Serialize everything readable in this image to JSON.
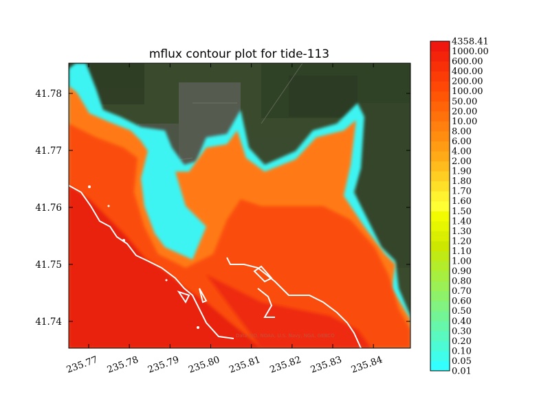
{
  "chart_data": {
    "type": "heatmap",
    "title": "mflux contour plot for tide-113",
    "xlabel": "",
    "ylabel": "",
    "xlim": [
      235.7651,
      235.8491
    ],
    "ylim": [
      41.7353,
      41.7853
    ],
    "x_ticks": [
      "235.77",
      "235.78",
      "235.79",
      "235.80",
      "235.81",
      "235.82",
      "235.83",
      "235.84"
    ],
    "x_tick_values": [
      235.77,
      235.78,
      235.79,
      235.8,
      235.81,
      235.82,
      235.83,
      235.84
    ],
    "y_ticks": [
      "41.74",
      "41.75",
      "41.76",
      "41.77",
      "41.78"
    ],
    "y_tick_values": [
      41.74,
      41.75,
      41.76,
      41.77,
      41.78
    ],
    "colorbar": {
      "levels": [
        "0.01",
        "0.05",
        "0.10",
        "0.20",
        "0.30",
        "0.40",
        "0.50",
        "0.60",
        "0.70",
        "0.80",
        "0.90",
        "1.00",
        "1.10",
        "1.20",
        "1.30",
        "1.40",
        "1.50",
        "1.60",
        "1.70",
        "1.80",
        "1.90",
        "2.00",
        "4.00",
        "6.00",
        "8.00",
        "10.00",
        "20.00",
        "50.00",
        "100.00",
        "200.00",
        "400.00",
        "600.00",
        "1000.00",
        "4358.41"
      ],
      "colors": [
        "#33ffff",
        "#40fdea",
        "#4cfbd4",
        "#59f9bf",
        "#66f7aa",
        "#73f595",
        "#80f380",
        "#8df26a",
        "#9af055",
        "#a6ee40",
        "#b3ec2b",
        "#c0ea15",
        "#cce800",
        "#d9ee00",
        "#e6f500",
        "#f2fb00",
        "#ffff33",
        "#fff22e",
        "#ffe028",
        "#ffce22",
        "#ffbc1c",
        "#ffaa16",
        "#ff9c13",
        "#ff8e10",
        "#ff800e",
        "#ff720b",
        "#ff6409",
        "#ff5606",
        "#ff4805",
        "#fc3c06",
        "#f83008",
        "#f4240b",
        "#f0180e"
      ]
    },
    "credit": "Data SIO, NOAA, U.S. Navy, NGA, GEBCO",
    "background": "satellite imagery",
    "grid": false,
    "legend": "colorbar right"
  }
}
